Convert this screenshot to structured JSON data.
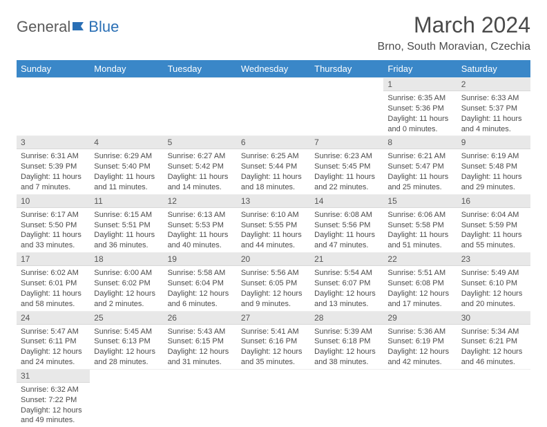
{
  "logo": {
    "text_part1": "General",
    "text_part2": "Blue"
  },
  "title": "March 2024",
  "location": "Brno, South Moravian, Czechia",
  "colors": {
    "header_bg": "#3a87c8",
    "header_text": "#ffffff",
    "daynum_bg": "#e8e8e8",
    "text": "#4a4a4a",
    "logo_gray": "#5a5a5a",
    "logo_blue": "#2a6fb5"
  },
  "weekdays": [
    "Sunday",
    "Monday",
    "Tuesday",
    "Wednesday",
    "Thursday",
    "Friday",
    "Saturday"
  ],
  "weeks": [
    [
      {
        "empty": true
      },
      {
        "empty": true
      },
      {
        "empty": true
      },
      {
        "empty": true
      },
      {
        "empty": true
      },
      {
        "n": "1",
        "sr": "Sunrise: 6:35 AM",
        "ss": "Sunset: 5:36 PM",
        "d1": "Daylight: 11 hours",
        "d2": "and 0 minutes."
      },
      {
        "n": "2",
        "sr": "Sunrise: 6:33 AM",
        "ss": "Sunset: 5:37 PM",
        "d1": "Daylight: 11 hours",
        "d2": "and 4 minutes."
      }
    ],
    [
      {
        "n": "3",
        "sr": "Sunrise: 6:31 AM",
        "ss": "Sunset: 5:39 PM",
        "d1": "Daylight: 11 hours",
        "d2": "and 7 minutes."
      },
      {
        "n": "4",
        "sr": "Sunrise: 6:29 AM",
        "ss": "Sunset: 5:40 PM",
        "d1": "Daylight: 11 hours",
        "d2": "and 11 minutes."
      },
      {
        "n": "5",
        "sr": "Sunrise: 6:27 AM",
        "ss": "Sunset: 5:42 PM",
        "d1": "Daylight: 11 hours",
        "d2": "and 14 minutes."
      },
      {
        "n": "6",
        "sr": "Sunrise: 6:25 AM",
        "ss": "Sunset: 5:44 PM",
        "d1": "Daylight: 11 hours",
        "d2": "and 18 minutes."
      },
      {
        "n": "7",
        "sr": "Sunrise: 6:23 AM",
        "ss": "Sunset: 5:45 PM",
        "d1": "Daylight: 11 hours",
        "d2": "and 22 minutes."
      },
      {
        "n": "8",
        "sr": "Sunrise: 6:21 AM",
        "ss": "Sunset: 5:47 PM",
        "d1": "Daylight: 11 hours",
        "d2": "and 25 minutes."
      },
      {
        "n": "9",
        "sr": "Sunrise: 6:19 AM",
        "ss": "Sunset: 5:48 PM",
        "d1": "Daylight: 11 hours",
        "d2": "and 29 minutes."
      }
    ],
    [
      {
        "n": "10",
        "sr": "Sunrise: 6:17 AM",
        "ss": "Sunset: 5:50 PM",
        "d1": "Daylight: 11 hours",
        "d2": "and 33 minutes."
      },
      {
        "n": "11",
        "sr": "Sunrise: 6:15 AM",
        "ss": "Sunset: 5:51 PM",
        "d1": "Daylight: 11 hours",
        "d2": "and 36 minutes."
      },
      {
        "n": "12",
        "sr": "Sunrise: 6:13 AM",
        "ss": "Sunset: 5:53 PM",
        "d1": "Daylight: 11 hours",
        "d2": "and 40 minutes."
      },
      {
        "n": "13",
        "sr": "Sunrise: 6:10 AM",
        "ss": "Sunset: 5:55 PM",
        "d1": "Daylight: 11 hours",
        "d2": "and 44 minutes."
      },
      {
        "n": "14",
        "sr": "Sunrise: 6:08 AM",
        "ss": "Sunset: 5:56 PM",
        "d1": "Daylight: 11 hours",
        "d2": "and 47 minutes."
      },
      {
        "n": "15",
        "sr": "Sunrise: 6:06 AM",
        "ss": "Sunset: 5:58 PM",
        "d1": "Daylight: 11 hours",
        "d2": "and 51 minutes."
      },
      {
        "n": "16",
        "sr": "Sunrise: 6:04 AM",
        "ss": "Sunset: 5:59 PM",
        "d1": "Daylight: 11 hours",
        "d2": "and 55 minutes."
      }
    ],
    [
      {
        "n": "17",
        "sr": "Sunrise: 6:02 AM",
        "ss": "Sunset: 6:01 PM",
        "d1": "Daylight: 11 hours",
        "d2": "and 58 minutes."
      },
      {
        "n": "18",
        "sr": "Sunrise: 6:00 AM",
        "ss": "Sunset: 6:02 PM",
        "d1": "Daylight: 12 hours",
        "d2": "and 2 minutes."
      },
      {
        "n": "19",
        "sr": "Sunrise: 5:58 AM",
        "ss": "Sunset: 6:04 PM",
        "d1": "Daylight: 12 hours",
        "d2": "and 6 minutes."
      },
      {
        "n": "20",
        "sr": "Sunrise: 5:56 AM",
        "ss": "Sunset: 6:05 PM",
        "d1": "Daylight: 12 hours",
        "d2": "and 9 minutes."
      },
      {
        "n": "21",
        "sr": "Sunrise: 5:54 AM",
        "ss": "Sunset: 6:07 PM",
        "d1": "Daylight: 12 hours",
        "d2": "and 13 minutes."
      },
      {
        "n": "22",
        "sr": "Sunrise: 5:51 AM",
        "ss": "Sunset: 6:08 PM",
        "d1": "Daylight: 12 hours",
        "d2": "and 17 minutes."
      },
      {
        "n": "23",
        "sr": "Sunrise: 5:49 AM",
        "ss": "Sunset: 6:10 PM",
        "d1": "Daylight: 12 hours",
        "d2": "and 20 minutes."
      }
    ],
    [
      {
        "n": "24",
        "sr": "Sunrise: 5:47 AM",
        "ss": "Sunset: 6:11 PM",
        "d1": "Daylight: 12 hours",
        "d2": "and 24 minutes."
      },
      {
        "n": "25",
        "sr": "Sunrise: 5:45 AM",
        "ss": "Sunset: 6:13 PM",
        "d1": "Daylight: 12 hours",
        "d2": "and 28 minutes."
      },
      {
        "n": "26",
        "sr": "Sunrise: 5:43 AM",
        "ss": "Sunset: 6:15 PM",
        "d1": "Daylight: 12 hours",
        "d2": "and 31 minutes."
      },
      {
        "n": "27",
        "sr": "Sunrise: 5:41 AM",
        "ss": "Sunset: 6:16 PM",
        "d1": "Daylight: 12 hours",
        "d2": "and 35 minutes."
      },
      {
        "n": "28",
        "sr": "Sunrise: 5:39 AM",
        "ss": "Sunset: 6:18 PM",
        "d1": "Daylight: 12 hours",
        "d2": "and 38 minutes."
      },
      {
        "n": "29",
        "sr": "Sunrise: 5:36 AM",
        "ss": "Sunset: 6:19 PM",
        "d1": "Daylight: 12 hours",
        "d2": "and 42 minutes."
      },
      {
        "n": "30",
        "sr": "Sunrise: 5:34 AM",
        "ss": "Sunset: 6:21 PM",
        "d1": "Daylight: 12 hours",
        "d2": "and 46 minutes."
      }
    ],
    [
      {
        "n": "31",
        "sr": "Sunrise: 6:32 AM",
        "ss": "Sunset: 7:22 PM",
        "d1": "Daylight: 12 hours",
        "d2": "and 49 minutes."
      },
      {
        "empty": true
      },
      {
        "empty": true
      },
      {
        "empty": true
      },
      {
        "empty": true
      },
      {
        "empty": true
      },
      {
        "empty": true
      }
    ]
  ]
}
